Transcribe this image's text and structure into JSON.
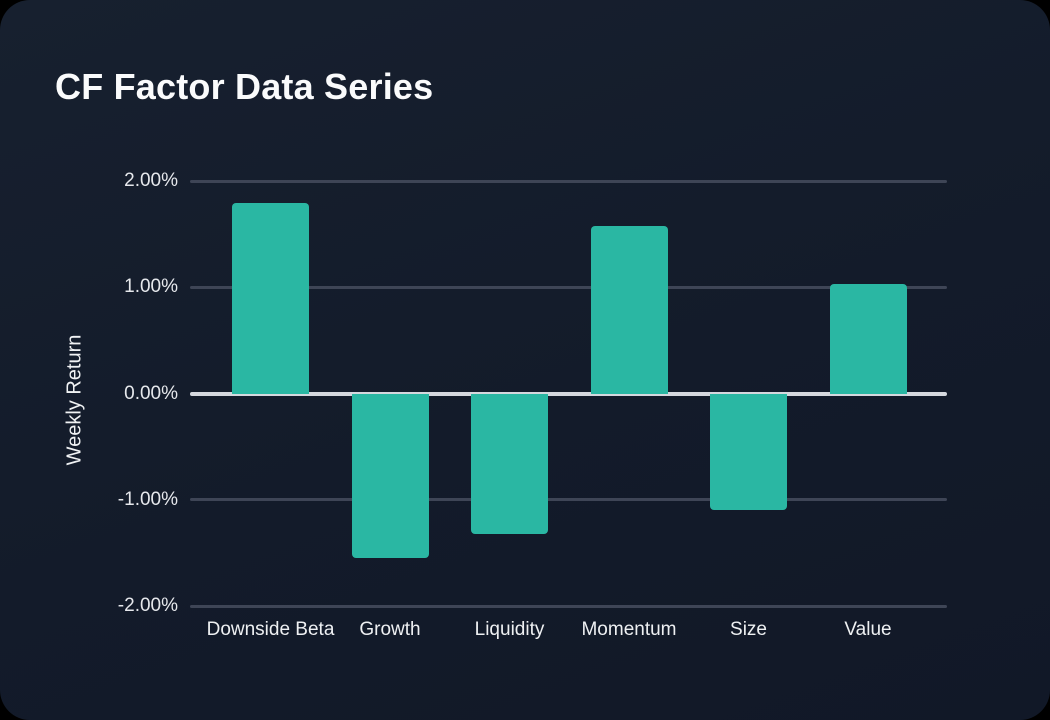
{
  "page": {
    "outer_background": "#000000",
    "card_background": "#131b2a"
  },
  "chart_data": {
    "type": "bar",
    "title": "CF Factor Data Series",
    "ylabel": "Weekly Return",
    "xlabel": "",
    "categories": [
      "Downside Beta",
      "Growth",
      "Liquidity",
      "Momentum",
      "Size",
      "Value"
    ],
    "values": [
      1.79,
      -1.55,
      -1.32,
      1.58,
      -1.1,
      1.03
    ],
    "value_unit": "%",
    "ylim": [
      -2,
      2
    ],
    "yticks": {
      "values": [
        2,
        1,
        0,
        -1,
        -2
      ],
      "labels": [
        "2.00%",
        "1.00%",
        "0.00%",
        "-1.00%",
        "-2.00%"
      ]
    },
    "grid": true,
    "legend": "none",
    "colors": {
      "bar": "#2ab7a3",
      "gridline": "#3e4556",
      "zero_line": "#d5d8de",
      "tick_label": "#e6e8ec",
      "axis_label": "#f0f2f4",
      "title": "#fafbfc"
    }
  }
}
